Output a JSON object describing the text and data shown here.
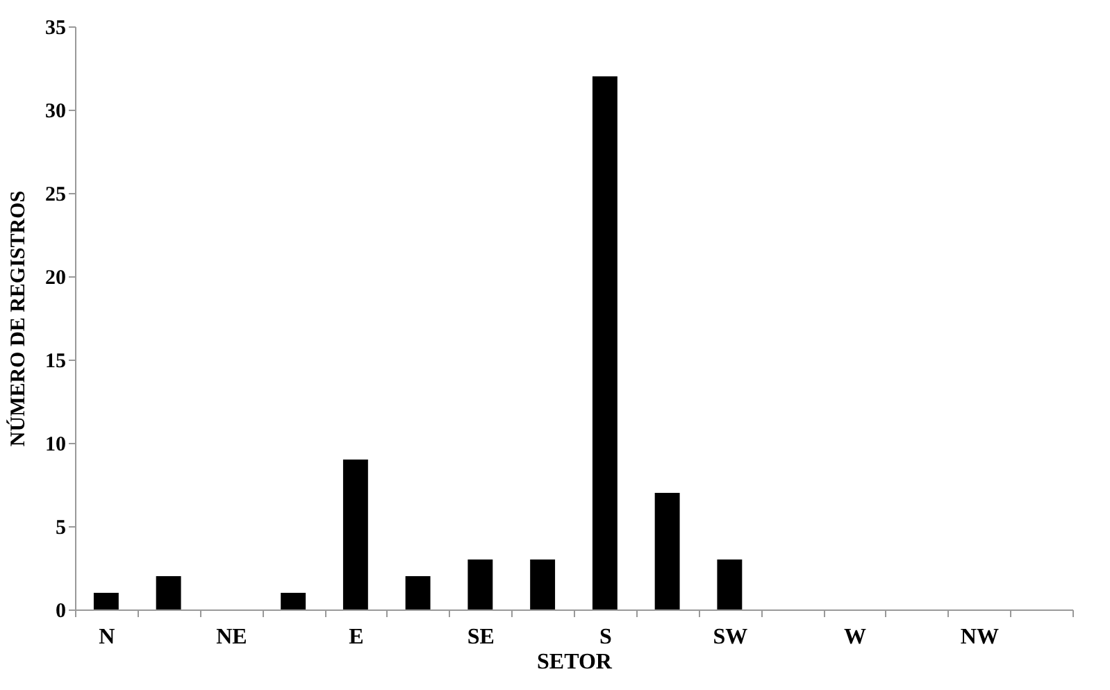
{
  "chart_data": {
    "type": "bar",
    "xlabel": "SETOR",
    "ylabel": "NÚMERO DE REGISTROS",
    "categories": [
      "N",
      null,
      "NE",
      null,
      "E",
      null,
      "SE",
      null,
      "S",
      null,
      "SW",
      null,
      "W",
      null,
      "NW",
      null
    ],
    "values": [
      1,
      2,
      0,
      1,
      9,
      2,
      3,
      3,
      32,
      7,
      3,
      0,
      0,
      0,
      0,
      0
    ],
    "color": "#000000",
    "ylim": [
      0,
      35
    ],
    "yticks": [
      0,
      5,
      10,
      15,
      20,
      25,
      30,
      35
    ],
    "grid": false
  }
}
